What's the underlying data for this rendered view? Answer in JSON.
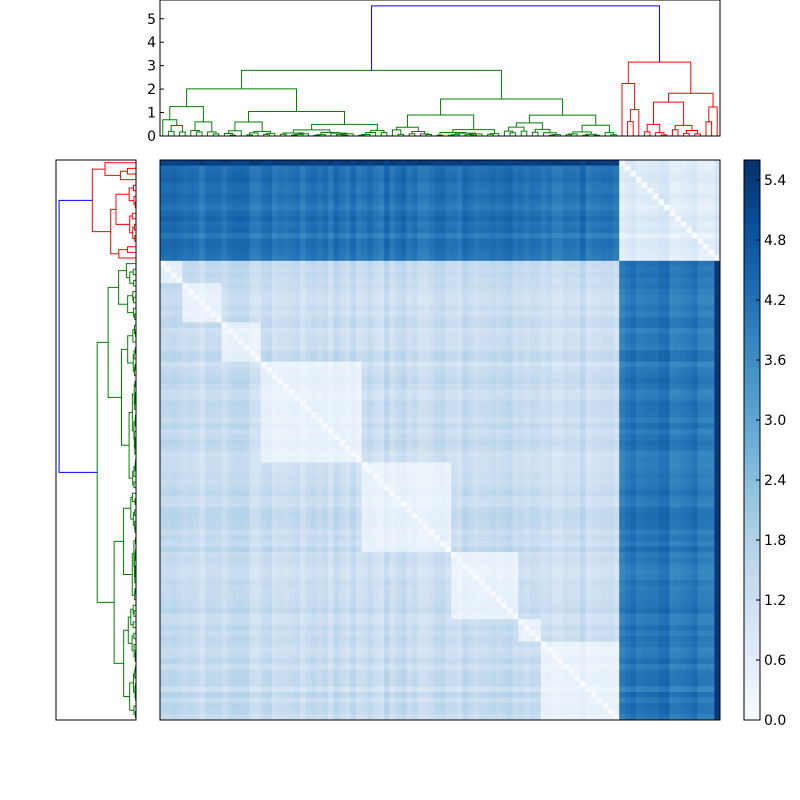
{
  "chart_data": [
    {
      "type": "dendrogram",
      "position": "top",
      "title": "",
      "ylim": [
        0,
        5.8
      ],
      "yticks": [
        {
          "value": 0,
          "label": "0"
        },
        {
          "value": 1,
          "label": "1"
        },
        {
          "value": 2,
          "label": "2"
        },
        {
          "value": 3,
          "label": "3"
        },
        {
          "value": 4,
          "label": "4"
        },
        {
          "value": 5,
          "label": "5"
        }
      ],
      "root_height": 5.55,
      "clusters": [
        {
          "name": "cluster-green",
          "color": "#008000",
          "leaf_range": [
            0,
            0.82
          ],
          "merge_height": 2.8
        },
        {
          "name": "cluster-red",
          "color": "#ff0000",
          "leaf_range": [
            0.82,
            1.0
          ],
          "merge_height": 3.15
        }
      ],
      "root_color": "#0000ff"
    },
    {
      "type": "dendrogram",
      "position": "left",
      "orientation": "mirrors top dendrogram (red cluster at top, green below)",
      "root_color": "#0000ff"
    },
    {
      "type": "heatmap",
      "title": "",
      "colormap": "Blues",
      "n_leaves": 100,
      "clusters": [
        {
          "name": "red-group",
          "range": [
            0,
            0.18
          ]
        },
        {
          "name": "green-group",
          "range": [
            0.18,
            1.0
          ]
        }
      ],
      "value_range": [
        0.0,
        5.6
      ],
      "within_cluster_distance_range": [
        0.2,
        1.8
      ],
      "between_cluster_distance_range": [
        3.6,
        4.6
      ],
      "outlier_max_distance": 5.4
    },
    {
      "type": "colorbar",
      "colormap": "Blues",
      "vmin": 0.0,
      "vmax": 5.6,
      "ticks": [
        {
          "value": 0.0,
          "label": "0.0"
        },
        {
          "value": 0.6,
          "label": "0.6"
        },
        {
          "value": 1.2,
          "label": "1.2"
        },
        {
          "value": 1.8,
          "label": "1.8"
        },
        {
          "value": 2.4,
          "label": "2.4"
        },
        {
          "value": 3.0,
          "label": "3.0"
        },
        {
          "value": 3.6,
          "label": "3.6"
        },
        {
          "value": 4.2,
          "label": "4.2"
        },
        {
          "value": 4.8,
          "label": "4.8"
        },
        {
          "value": 5.4,
          "label": "5.4"
        }
      ]
    }
  ]
}
